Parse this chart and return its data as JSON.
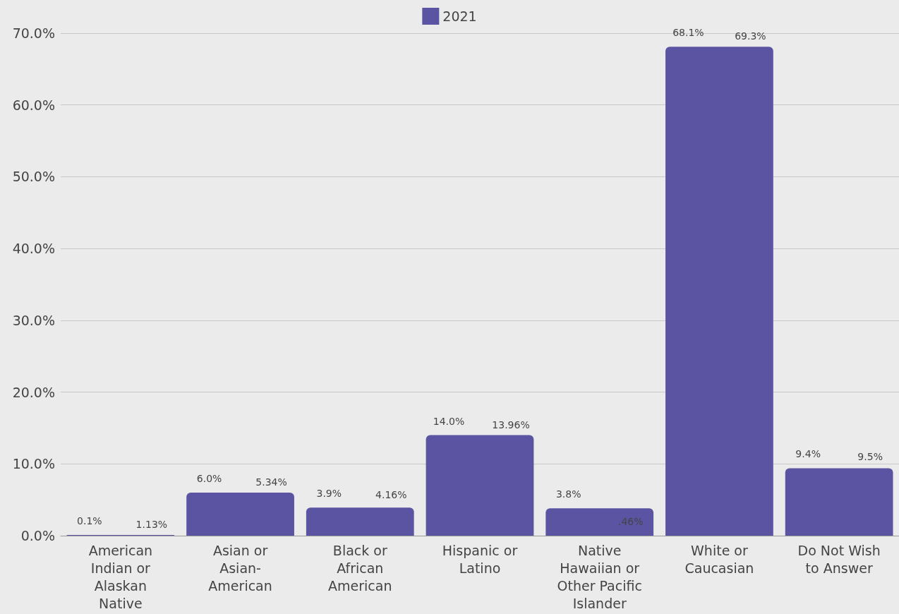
{
  "chart_data": {
    "type": "bar",
    "categories": [
      "American Indian or Alaskan Native",
      "Asian or Asian-American",
      "Black or African American",
      "Hispanic or Latino",
      "Native Hawaiian or Other Pacific Islander",
      "White or Caucasian",
      "Do Not Wish to Answer"
    ],
    "series": [
      {
        "name": "2021",
        "color": "#5b54a3",
        "values": [
          0.1,
          6.0,
          3.9,
          14.0,
          3.8,
          68.1,
          9.4
        ],
        "value_labels": [
          "0.1%",
          "6.0%",
          "3.9%",
          "14.0%",
          "3.8%",
          "68.1%",
          "9.4%"
        ]
      }
    ],
    "annotations": [
      "1.13%",
      "5.34%",
      {
        "text": "4.16%",
        "x": "Black or African American",
        "y": 4.2
      },
      {
        "text": "13.96%",
        "x": "Hispanic or Latino",
        "y": 14.0
      },
      {
        "text": ".46%",
        "x": "Native Hawaiian or Other Pacific Islander",
        "y": 0.5
      },
      "69.3%",
      {
        "text": "9.5%",
        "x": "Do Not Wish to Answer",
        "y": 9.5
      }
    ],
    "ylim": [
      0,
      70
    ],
    "yticks": [
      {
        "value": 0,
        "label": "0.0%"
      },
      {
        "value": 10,
        "label": "10.0%"
      },
      {
        "value": 20,
        "label": "20.0%"
      },
      {
        "value": 30,
        "label": "30.0%"
      },
      {
        "value": 40,
        "label": "40.0%"
      },
      {
        "value": 50,
        "label": "50.0%"
      },
      {
        "value": 60,
        "label": "60.0%"
      },
      {
        "value": 70,
        "label": "70.0%"
      }
    ],
    "grid": "y",
    "legend": "top"
  }
}
